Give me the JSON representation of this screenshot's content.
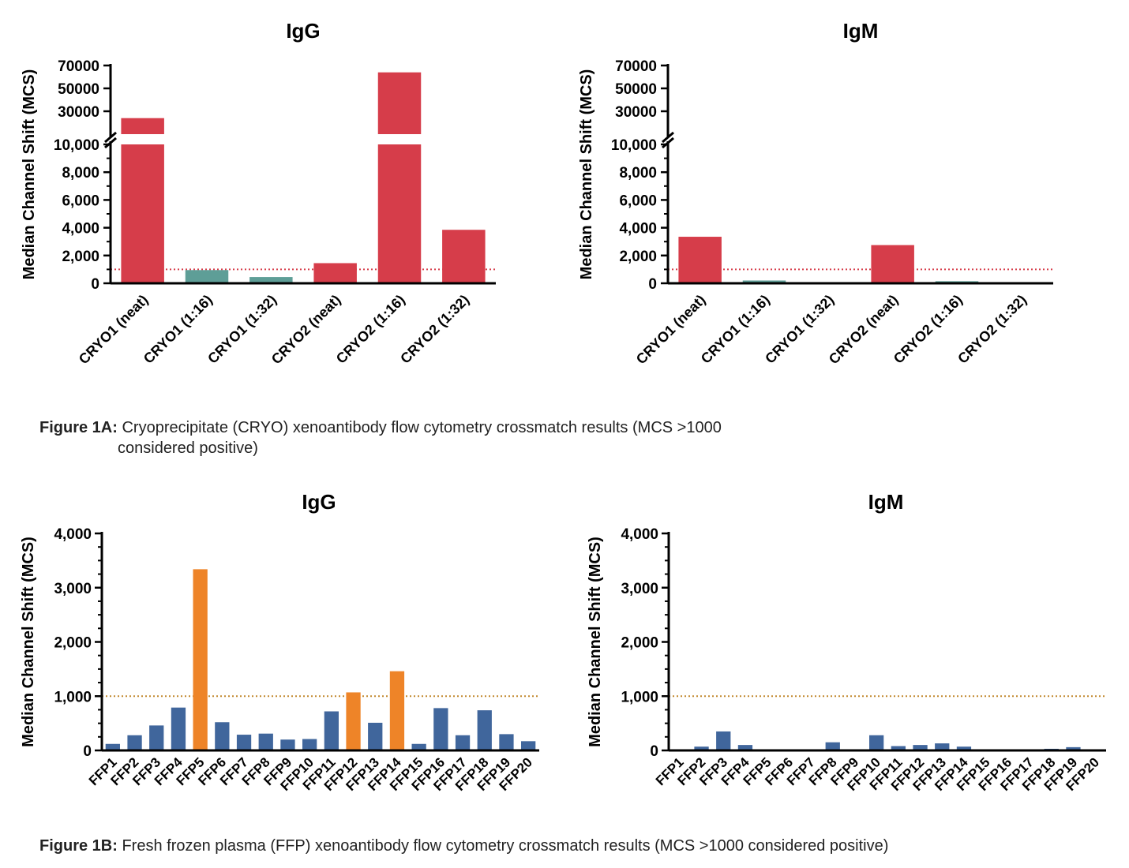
{
  "figure_a": {
    "caption_label": "Figure 1A:",
    "caption_text_line1": "Cryoprecipitate (CRYO) xenoantibody flow cytometry crossmatch results (MCS >1000",
    "caption_text_line2": "considered positive)"
  },
  "figure_b": {
    "caption_label": "Figure 1B:",
    "caption_text": "Fresh frozen plasma (FFP) xenoantibody flow cytometry crossmatch results (MCS >1000 considered positive)"
  },
  "colors": {
    "cryo_positive": "#d63d4a",
    "cryo_negative": "#5e9e97",
    "ffp_positive": "#ee8428",
    "ffp_negative": "#40669c",
    "cryo_threshold": "#d63d4a",
    "ffp_threshold": "#c2892e"
  },
  "chart_data": [
    {
      "type": "bar",
      "title": "IgG",
      "ylabel": "Median Channel Shift (MCS)",
      "categories": [
        "CRYO1 (neat)",
        "CRYO1 (1:16)",
        "CRYO1 (1:32)",
        "CRYO2 (neat)",
        "CRYO2 (1:16)",
        "CRYO2 (1:32)"
      ],
      "values": [
        24000,
        950,
        450,
        1450,
        64000,
        3850
      ],
      "positive": [
        true,
        false,
        false,
        true,
        true,
        true
      ],
      "threshold": 1000,
      "axis_break": true,
      "ylim_lower": [
        0,
        10000
      ],
      "ylim_upper": [
        10000,
        70000
      ],
      "yticks_lower": [
        "0",
        "2,000",
        "4,000",
        "6,000",
        "8,000",
        "10,000"
      ],
      "yticks_upper": [
        "30000",
        "50000",
        "70000"
      ]
    },
    {
      "type": "bar",
      "title": "IgM",
      "ylabel": "Median Channel Shift (MCS)",
      "categories": [
        "CRYO1 (neat)",
        "CRYO1 (1:16)",
        "CRYO1 (1:32)",
        "CRYO2 (neat)",
        "CRYO2 (1:16)",
        "CRYO2 (1:32)"
      ],
      "values": [
        3350,
        200,
        80,
        2750,
        150,
        30
      ],
      "positive": [
        true,
        false,
        false,
        true,
        false,
        false
      ],
      "threshold": 1000,
      "axis_break": true,
      "ylim_lower": [
        0,
        10000
      ],
      "ylim_upper": [
        10000,
        70000
      ],
      "yticks_lower": [
        "0",
        "2,000",
        "4,000",
        "6,000",
        "8,000",
        "10,000"
      ],
      "yticks_upper": [
        "30000",
        "50000",
        "70000"
      ]
    },
    {
      "type": "bar",
      "title": "IgG",
      "ylabel": "Median Channel Shift (MCS)",
      "categories": [
        "FFP1",
        "FFP2",
        "FFP3",
        "FFP4",
        "FFP5",
        "FFP6",
        "FFP7",
        "FFP8",
        "FFP9",
        "FFP10",
        "FFP11",
        "FFP12",
        "FFP13",
        "FFP14",
        "FFP15",
        "FFP16",
        "FFP17",
        "FFP18",
        "FFP19",
        "FFP20"
      ],
      "values": [
        120,
        280,
        460,
        790,
        3340,
        520,
        290,
        310,
        200,
        210,
        720,
        1070,
        510,
        1460,
        120,
        780,
        280,
        740,
        300,
        170
      ],
      "positive": [
        false,
        false,
        false,
        false,
        true,
        false,
        false,
        false,
        false,
        false,
        false,
        true,
        false,
        true,
        false,
        false,
        false,
        false,
        false,
        false
      ],
      "threshold": 1000,
      "ylim": [
        0,
        4000
      ],
      "yticks": [
        "0",
        "1,000",
        "2,000",
        "3,000",
        "4,000"
      ]
    },
    {
      "type": "bar",
      "title": "IgM",
      "ylabel": "Median Channel Shift (MCS)",
      "categories": [
        "FFP1",
        "FFP2",
        "FFP3",
        "FFP4",
        "FFP5",
        "FFP6",
        "FFP7",
        "FFP8",
        "FFP9",
        "FFP10",
        "FFP11",
        "FFP12",
        "FFP13",
        "FFP14",
        "FFP15",
        "FFP16",
        "FFP17",
        "FFP18",
        "FFP19",
        "FFP20"
      ],
      "values": [
        5,
        70,
        350,
        100,
        5,
        5,
        5,
        150,
        5,
        280,
        80,
        100,
        130,
        70,
        5,
        5,
        10,
        30,
        60,
        5
      ],
      "positive": [
        false,
        false,
        false,
        false,
        false,
        false,
        false,
        false,
        false,
        false,
        false,
        false,
        false,
        false,
        false,
        false,
        false,
        false,
        false,
        false
      ],
      "threshold": 1000,
      "ylim": [
        0,
        4000
      ],
      "yticks": [
        "0",
        "1,000",
        "2,000",
        "3,000",
        "4,000"
      ]
    }
  ]
}
